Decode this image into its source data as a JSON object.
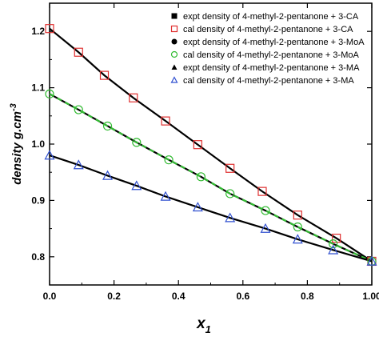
{
  "chart_data": {
    "type": "line",
    "xlabel": "x",
    "xlabel_sub": "1",
    "ylabel": "density  g.cm",
    "ylabel_sup": "-3",
    "xlim": [
      0.0,
      1.0
    ],
    "ylim": [
      0.75,
      1.25
    ],
    "xticks": [
      "0.0",
      "0.2",
      "0.4",
      "0.6",
      "0.8",
      "1.00"
    ],
    "yticks": [
      "0.8",
      "0.9",
      "1.0",
      "1.1",
      "1.2"
    ],
    "legend_position": "top-right",
    "legend": [
      {
        "label": "expt density of 4-methyl-2-pentanone + 3-CA",
        "marker": "filled-square"
      },
      {
        "label": "cal density of 4-methyl-2-pentanone + 3-CA",
        "marker": "open-square"
      },
      {
        "label": "expt density of 4-methyl-2-pentanone + 3-MoA",
        "marker": "filled-circle"
      },
      {
        "label": "cal density of 4-methyl-2-pentanone + 3-MoA",
        "marker": "open-circle"
      },
      {
        "label": "expt density of 4-methyl-2-pentanone + 3-MA",
        "marker": "filled-triangle"
      },
      {
        "label": "cal density of 4-methyl-2-pentanone + 3-MA",
        "marker": "open-triangle"
      }
    ],
    "series": [
      {
        "name": "cal density of 4-methyl-2-pentanone + 3-CA",
        "marker": "open-square",
        "color": "#e03030",
        "line_color": "#000000",
        "x": [
          0.0,
          0.09,
          0.17,
          0.26,
          0.36,
          0.46,
          0.56,
          0.66,
          0.77,
          0.89,
          1.0
        ],
        "y": [
          1.205,
          1.163,
          1.122,
          1.082,
          1.041,
          0.999,
          0.957,
          0.916,
          0.874,
          0.833,
          0.792
        ]
      },
      {
        "name": "cal density of 4-methyl-2-pentanone + 3-MoA",
        "marker": "open-circle",
        "color": "#33bb33",
        "line_color": "#000000",
        "x": [
          0.0,
          0.09,
          0.18,
          0.27,
          0.37,
          0.47,
          0.56,
          0.67,
          0.77,
          0.88,
          1.0
        ],
        "y": [
          1.089,
          1.061,
          1.032,
          1.003,
          0.972,
          0.942,
          0.912,
          0.882,
          0.853,
          0.823,
          0.792
        ]
      },
      {
        "name": "cal density of 4-methyl-2-pentanone + 3-MA",
        "marker": "open-triangle",
        "color": "#3050d0",
        "line_color": "#000000",
        "x": [
          0.0,
          0.09,
          0.18,
          0.27,
          0.36,
          0.46,
          0.56,
          0.67,
          0.77,
          0.88,
          1.0
        ],
        "y": [
          0.98,
          0.963,
          0.944,
          0.926,
          0.907,
          0.888,
          0.869,
          0.85,
          0.831,
          0.812,
          0.792
        ]
      }
    ]
  }
}
